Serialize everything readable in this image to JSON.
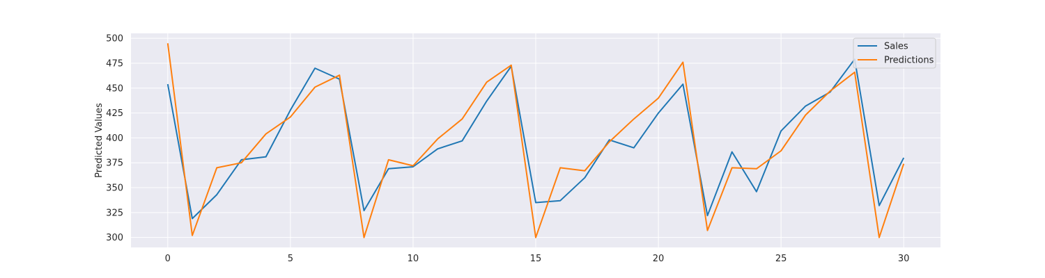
{
  "chart_data": {
    "type": "line",
    "title": "",
    "xlabel": "",
    "ylabel": "Predicted Values",
    "xlim": [
      -1.5,
      31.5
    ],
    "ylim": [
      290,
      505
    ],
    "xticks": [
      0,
      5,
      10,
      15,
      20,
      25,
      30
    ],
    "yticks": [
      300,
      325,
      350,
      375,
      400,
      425,
      450,
      475,
      500
    ],
    "grid": true,
    "legend_position": "top-right",
    "x": [
      0,
      1,
      2,
      3,
      4,
      5,
      6,
      7,
      8,
      9,
      10,
      11,
      12,
      13,
      14,
      15,
      16,
      17,
      18,
      19,
      20,
      21,
      22,
      23,
      24,
      25,
      26,
      27,
      28,
      29,
      30
    ],
    "series": [
      {
        "name": "Sales",
        "color": "#1f77b4",
        "values": [
          454,
          319,
          343,
          378,
          381,
          428,
          470,
          459,
          327,
          369,
          371,
          389,
          397,
          437,
          472,
          335,
          337,
          360,
          398,
          390,
          425,
          454,
          322,
          386,
          346,
          407,
          432,
          446,
          479,
          332,
          380
        ]
      },
      {
        "name": "Predictions",
        "color": "#ff7f0e",
        "values": [
          495,
          302,
          370,
          375,
          404,
          421,
          451,
          463,
          300,
          378,
          372,
          399,
          419,
          456,
          473,
          300,
          370,
          367,
          396,
          419,
          440,
          476,
          307,
          370,
          369,
          387,
          423,
          447,
          466,
          300,
          374
        ]
      }
    ]
  }
}
